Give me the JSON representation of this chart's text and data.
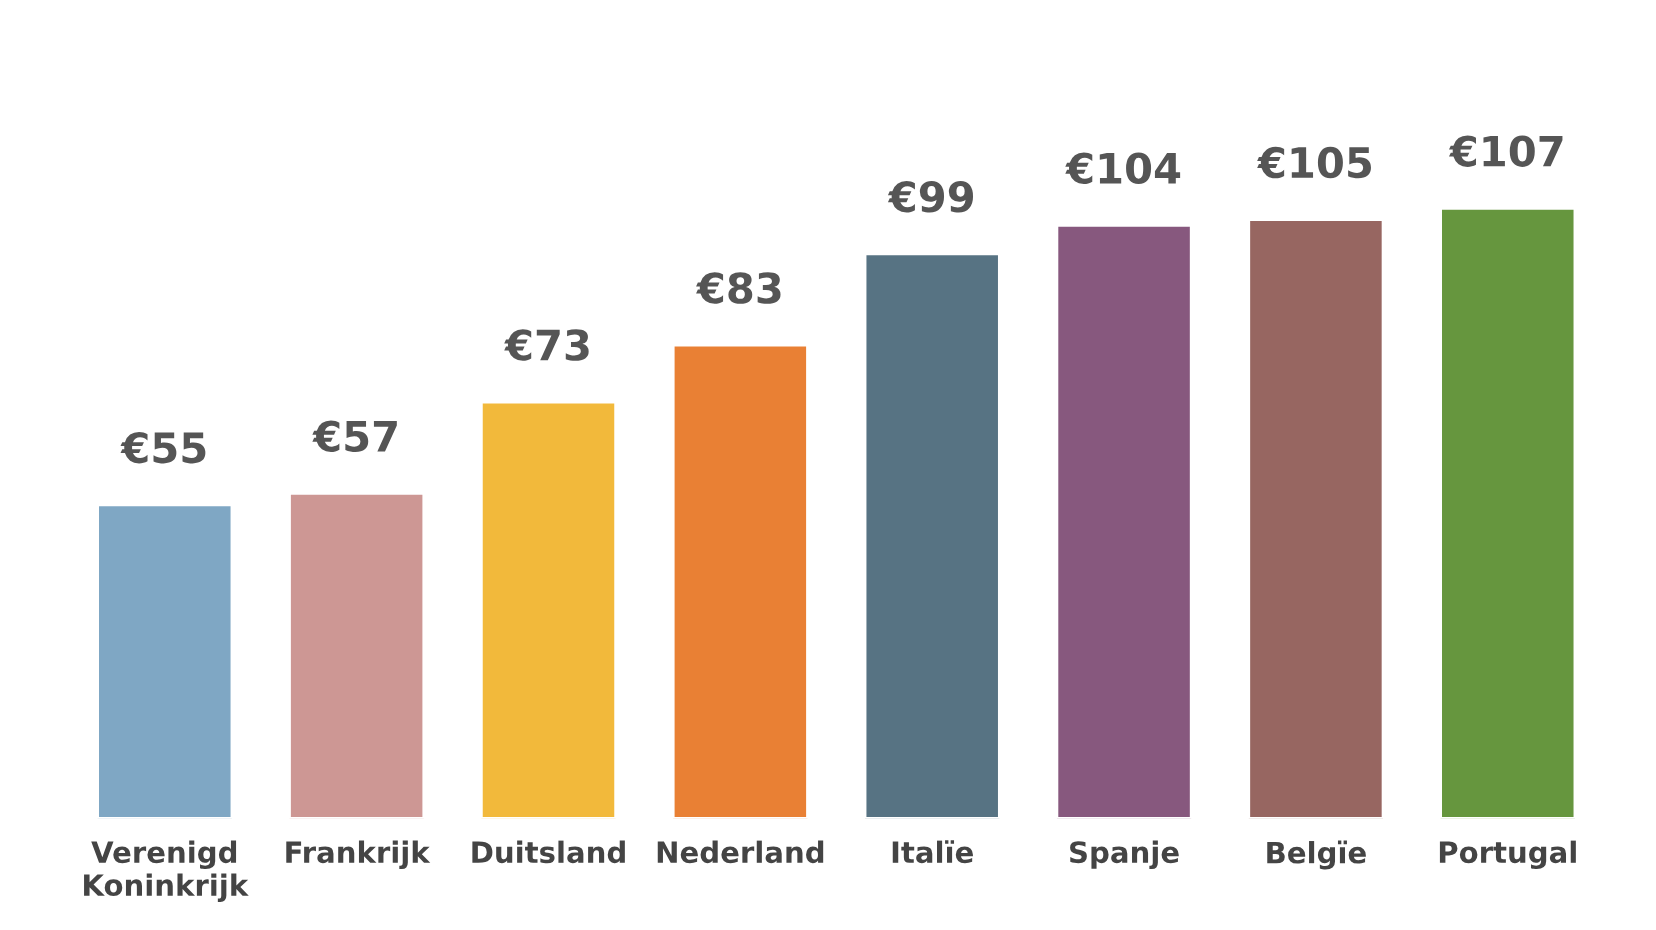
{
  "chart_data": {
    "type": "bar",
    "categories": [
      "Verenigd\nKoninkrijk",
      "Frankrijk",
      "Duitsland",
      "Nederland",
      "Italïe",
      "Spanje",
      "Belgïe",
      "Portugal"
    ],
    "values": [
      55,
      57,
      73,
      83,
      99,
      104,
      105,
      107
    ],
    "value_labels": [
      "€55",
      "€57",
      "€73",
      "€83",
      "€99",
      "€104",
      "€105",
      "€107"
    ],
    "colors": [
      "#7fa7c4",
      "#cd9794",
      "#f2b93b",
      "#e98034",
      "#577383",
      "#87587e",
      "#976661",
      "#66963e"
    ],
    "grid": false,
    "legend": false
  }
}
